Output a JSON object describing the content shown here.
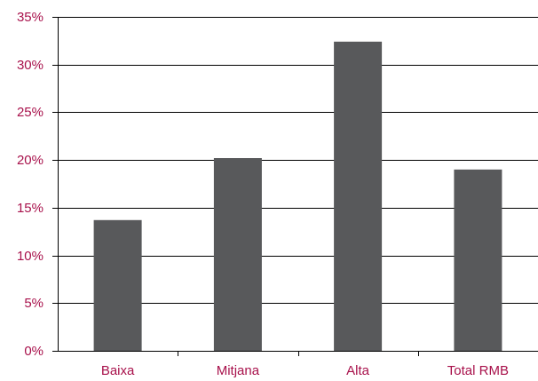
{
  "chart_data": {
    "type": "bar",
    "categories": [
      "Baixa",
      "Mitjana",
      "Alta",
      "Total RMB"
    ],
    "values": [
      13.7,
      20.2,
      32.4,
      19.0
    ],
    "y_tick_values": [
      0,
      5,
      10,
      15,
      20,
      25,
      30,
      35
    ],
    "y_tick_labels": [
      "0%",
      "5%",
      "10%",
      "15%",
      "20%",
      "25%",
      "30%",
      "35%"
    ],
    "ylim": [
      0,
      35
    ],
    "grid": true,
    "legend": "none",
    "colors": {
      "bar": "#58595b",
      "tick_label": "#a8114b",
      "axis": "#000000"
    }
  }
}
